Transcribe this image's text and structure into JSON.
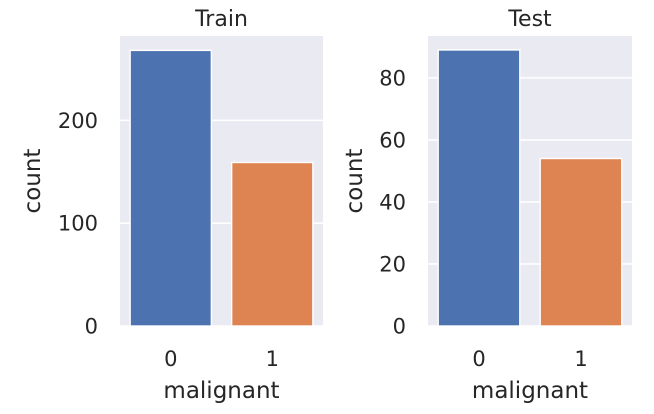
{
  "chart_data": [
    {
      "type": "bar",
      "title": "Train",
      "xlabel": "malignant",
      "ylabel": "count",
      "categories": [
        "0",
        "1"
      ],
      "values": [
        268,
        159
      ],
      "colors": [
        "#4c72b0",
        "#dd8452"
      ],
      "ylim": [
        0,
        282
      ],
      "yticks": [
        0,
        100,
        200
      ],
      "grid": true
    },
    {
      "type": "bar",
      "title": "Test",
      "xlabel": "malignant",
      "ylabel": "count",
      "categories": [
        "0",
        "1"
      ],
      "values": [
        89,
        54
      ],
      "colors": [
        "#4c72b0",
        "#dd8452"
      ],
      "ylim": [
        0,
        93.5
      ],
      "yticks": [
        0,
        20,
        40,
        60,
        80
      ],
      "grid": true
    }
  ],
  "style": {
    "plot_background": "#eaeaf2",
    "grid_color": "#ffffff",
    "text_color": "#262626"
  }
}
